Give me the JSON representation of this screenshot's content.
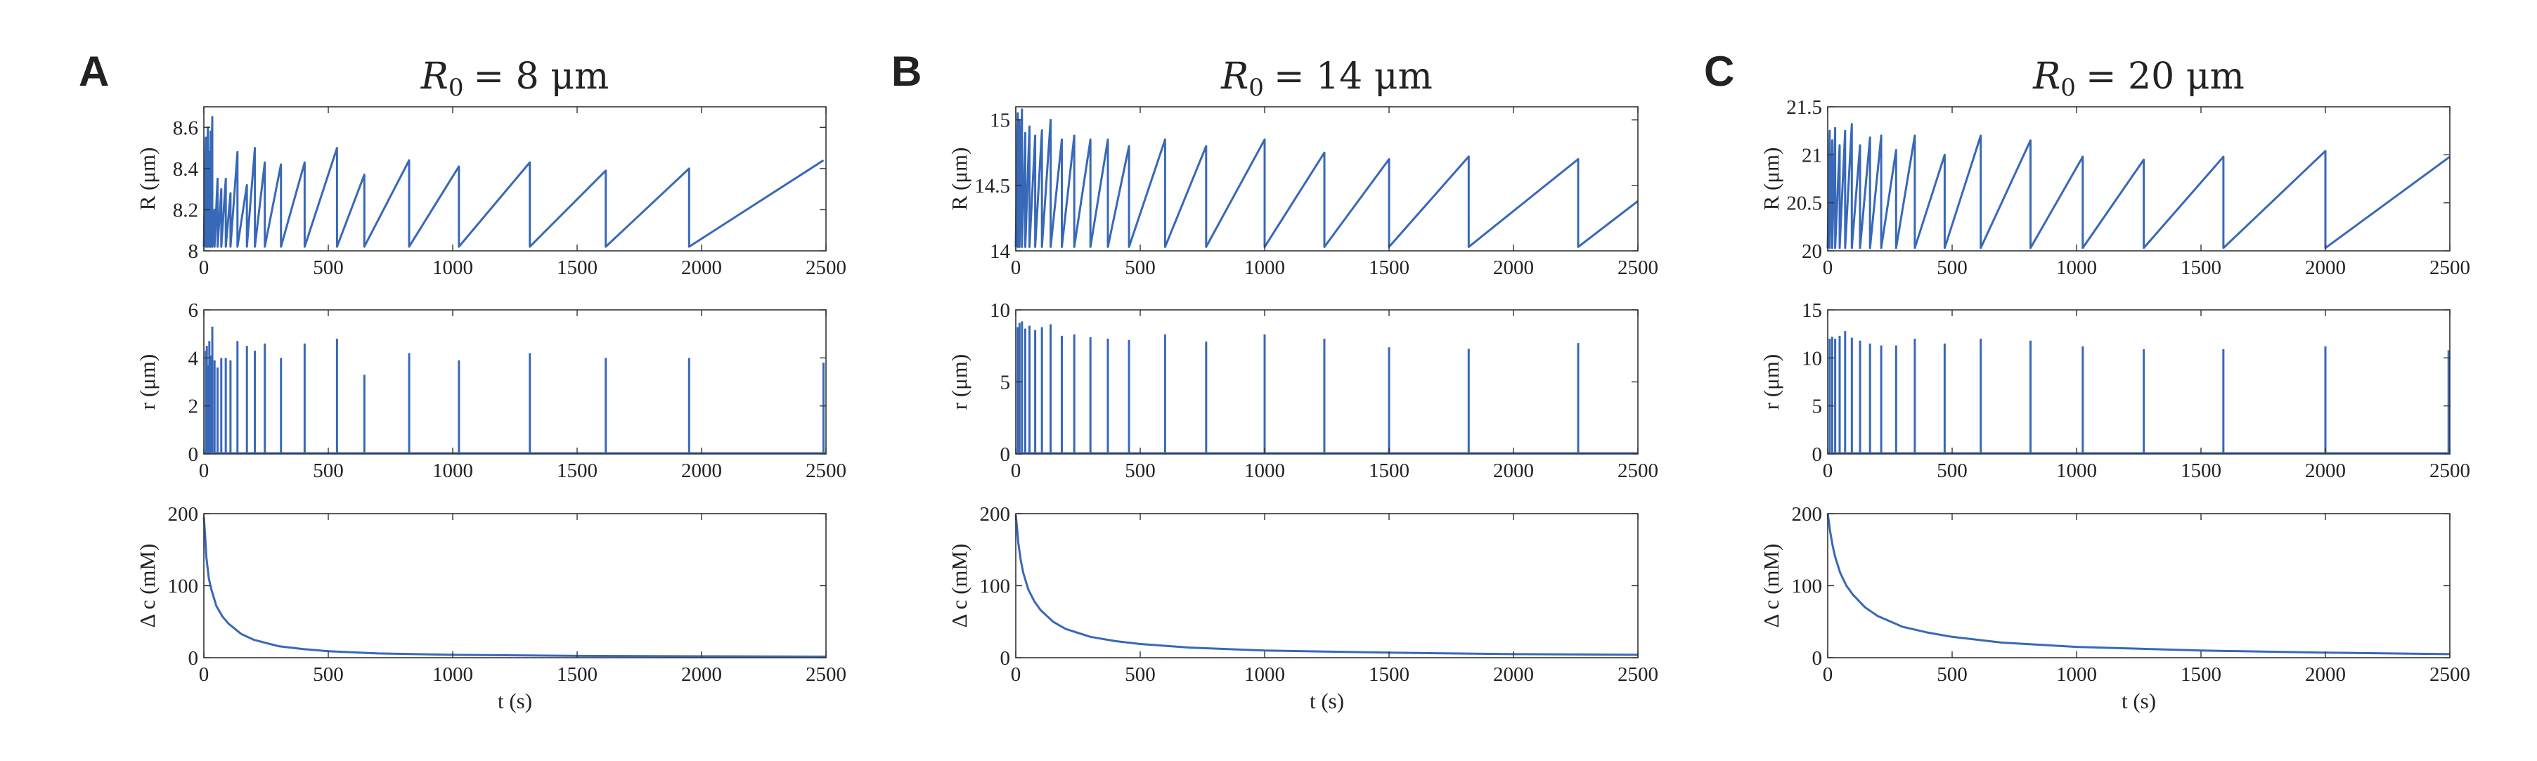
{
  "series_color": "#3868b8",
  "chart_data": [
    {
      "panel": "A",
      "title": {
        "lhs": "R",
        "sub": "0",
        "rhs": "= 8 μm"
      },
      "subplots": [
        {
          "type": "line",
          "ylabel": "R (μm)",
          "xlim": [
            0,
            2500
          ],
          "ylim": [
            8,
            8.7
          ],
          "xticks": [
            "0",
            "500",
            "1000",
            "1500",
            "2000",
            "2500"
          ],
          "yticks": [
            "8",
            "8.2",
            "8.4",
            "8.6"
          ],
          "series": [
            {
              "kind": "sawtooth",
              "color": "#3868b8",
              "base": 8.02,
              "peaks": [
                [
                  8,
                  8.55
                ],
                [
                  12,
                  8.48
                ],
                [
                  16,
                  8.6
                ],
                [
                  22,
                  8.48
                ],
                [
                  27,
                  8.58
                ],
                [
                  34,
                  8.65
                ],
                [
                  43,
                  8.2
                ],
                [
                  55,
                  8.35
                ],
                [
                  70,
                  8.3
                ],
                [
                  88,
                  8.35
                ],
                [
                  107,
                  8.28
                ],
                [
                  135,
                  8.48
                ],
                [
                  173,
                  8.32
                ],
                [
                  205,
                  8.5
                ],
                [
                  245,
                  8.43
                ],
                [
                  310,
                  8.42
                ],
                [
                  405,
                  8.43
                ],
                [
                  535,
                  8.5
                ],
                [
                  645,
                  8.37
                ],
                [
                  825,
                  8.44
                ],
                [
                  1025,
                  8.41
                ],
                [
                  1310,
                  8.43
                ],
                [
                  1615,
                  8.39
                ],
                [
                  1950,
                  8.4
                ],
                [
                  2490,
                  8.44
                ]
              ]
            }
          ]
        },
        {
          "type": "spikes",
          "ylabel": "r (μm)",
          "xlim": [
            0,
            2500
          ],
          "ylim": [
            0,
            6
          ],
          "xticks": [
            "0",
            "500",
            "1000",
            "1500",
            "2000",
            "2500"
          ],
          "yticks": [
            "0",
            "2",
            "4",
            "6"
          ],
          "series": [
            {
              "kind": "spikes",
              "color": "#3868b8",
              "spikes": [
                [
                  8,
                  4.3
                ],
                [
                  12,
                  4.5
                ],
                [
                  16,
                  3.7
                ],
                [
                  22,
                  4.7
                ],
                [
                  27,
                  4.1
                ],
                [
                  34,
                  5.3
                ],
                [
                  43,
                  3.9
                ],
                [
                  55,
                  3.6
                ],
                [
                  70,
                  4.0
                ],
                [
                  88,
                  4.0
                ],
                [
                  107,
                  3.9
                ],
                [
                  135,
                  4.7
                ],
                [
                  173,
                  4.5
                ],
                [
                  205,
                  4.3
                ],
                [
                  245,
                  4.6
                ],
                [
                  310,
                  4.0
                ],
                [
                  405,
                  4.6
                ],
                [
                  535,
                  4.8
                ],
                [
                  645,
                  3.3
                ],
                [
                  825,
                  4.2
                ],
                [
                  1025,
                  3.9
                ],
                [
                  1310,
                  4.2
                ],
                [
                  1615,
                  4.0
                ],
                [
                  1950,
                  4.0
                ],
                [
                  2490,
                  3.8
                ]
              ]
            }
          ]
        },
        {
          "type": "line",
          "ylabel": "Δ c (mM)",
          "xlabel": "t (s)",
          "xlim": [
            0,
            2500
          ],
          "ylim": [
            0,
            200
          ],
          "xticks": [
            "0",
            "500",
            "1000",
            "1500",
            "2000",
            "2500"
          ],
          "yticks": [
            "0",
            "100",
            "200"
          ],
          "series": [
            {
              "kind": "line",
              "color": "#3868b8",
              "x": [
                0,
                5,
                10,
                20,
                30,
                50,
                75,
                100,
                150,
                200,
                300,
                400,
                500,
                700,
                1000,
                1500,
                2000,
                2500
              ],
              "y": [
                195,
                170,
                140,
                110,
                95,
                72,
                57,
                47,
                33,
                25,
                16,
                12,
                9,
                6,
                4,
                2.5,
                2,
                1.5
              ]
            }
          ]
        }
      ]
    },
    {
      "panel": "B",
      "title": {
        "lhs": "R",
        "sub": "0",
        "rhs": "= 14 μm"
      },
      "subplots": [
        {
          "type": "line",
          "ylabel": "R (μm)",
          "xlim": [
            0,
            2500
          ],
          "ylim": [
            14,
            15.1
          ],
          "xticks": [
            "0",
            "500",
            "1000",
            "1500",
            "2000",
            "2500"
          ],
          "yticks": [
            "14",
            "14.5",
            "15"
          ],
          "series": [
            {
              "kind": "sawtooth",
              "color": "#3868b8",
              "base": 14.03,
              "peaks": [
                [
                  8,
                  15.05
                ],
                [
                  15,
                  15.0
                ],
                [
                  25,
                  15.08
                ],
                [
                  38,
                  14.9
                ],
                [
                  55,
                  14.95
                ],
                [
                  78,
                  14.88
                ],
                [
                  105,
                  14.92
                ],
                [
                  140,
                  15.0
                ],
                [
                  185,
                  14.85
                ],
                [
                  235,
                  14.88
                ],
                [
                  300,
                  14.85
                ],
                [
                  370,
                  14.85
                ],
                [
                  455,
                  14.8
                ],
                [
                  600,
                  14.85
                ],
                [
                  765,
                  14.8
                ],
                [
                  1000,
                  14.85
                ],
                [
                  1240,
                  14.75
                ],
                [
                  1500,
                  14.7
                ],
                [
                  1820,
                  14.72
                ],
                [
                  2260,
                  14.7
                ],
                [
                  2500,
                  14.38
                ]
              ]
            }
          ]
        },
        {
          "type": "spikes",
          "ylabel": "r (μm)",
          "xlim": [
            0,
            2500
          ],
          "ylim": [
            0,
            10
          ],
          "xticks": [
            "0",
            "500",
            "1000",
            "1500",
            "2000",
            "2500"
          ],
          "yticks": [
            "0",
            "5",
            "10"
          ],
          "series": [
            {
              "kind": "spikes",
              "color": "#3868b8",
              "spikes": [
                [
                  8,
                  8.8
                ],
                [
                  15,
                  9.1
                ],
                [
                  25,
                  9.2
                ],
                [
                  38,
                  8.7
                ],
                [
                  55,
                  8.9
                ],
                [
                  78,
                  8.6
                ],
                [
                  105,
                  8.8
                ],
                [
                  140,
                  9.0
                ],
                [
                  185,
                  8.2
                ],
                [
                  235,
                  8.3
                ],
                [
                  300,
                  8.1
                ],
                [
                  370,
                  8.0
                ],
                [
                  455,
                  7.9
                ],
                [
                  600,
                  8.3
                ],
                [
                  765,
                  7.8
                ],
                [
                  1000,
                  8.3
                ],
                [
                  1240,
                  8.0
                ],
                [
                  1500,
                  7.4
                ],
                [
                  1820,
                  7.3
                ],
                [
                  2260,
                  7.7
                ]
              ]
            }
          ]
        },
        {
          "type": "line",
          "ylabel": "Δ c (mM)",
          "xlabel": "t (s)",
          "xlim": [
            0,
            2500
          ],
          "ylim": [
            0,
            200
          ],
          "xticks": [
            "0",
            "500",
            "1000",
            "1500",
            "2000",
            "2500"
          ],
          "yticks": [
            "0",
            "100",
            "200"
          ],
          "series": [
            {
              "kind": "line",
              "color": "#3868b8",
              "x": [
                0,
                5,
                10,
                20,
                30,
                50,
                75,
                100,
                150,
                200,
                300,
                400,
                500,
                700,
                1000,
                1500,
                2000,
                2500
              ],
              "y": [
                198,
                180,
                160,
                135,
                118,
                95,
                78,
                66,
                50,
                40,
                29,
                23,
                19,
                14,
                10,
                7,
                5,
                4
              ]
            }
          ]
        }
      ]
    },
    {
      "panel": "C",
      "title": {
        "lhs": "R",
        "sub": "0",
        "rhs": "= 20 μm"
      },
      "subplots": [
        {
          "type": "line",
          "ylabel": "R (μm)",
          "xlim": [
            0,
            2500
          ],
          "ylim": [
            20,
            21.5
          ],
          "xticks": [
            "0",
            "500",
            "1000",
            "1500",
            "2000",
            "2500"
          ],
          "yticks": [
            "20",
            "20.5",
            "21",
            "21.5"
          ],
          "series": [
            {
              "kind": "sawtooth",
              "color": "#3868b8",
              "base": 20.03,
              "peaks": [
                [
                  8,
                  21.25
                ],
                [
                  18,
                  21.15
                ],
                [
                  30,
                  21.28
                ],
                [
                  48,
                  21.1
                ],
                [
                  70,
                  21.25
                ],
                [
                  97,
                  21.32
                ],
                [
                  130,
                  21.1
                ],
                [
                  170,
                  21.18
                ],
                [
                  215,
                  21.2
                ],
                [
                  275,
                  21.05
                ],
                [
                  350,
                  21.2
                ],
                [
                  470,
                  21.0
                ],
                [
                  615,
                  21.2
                ],
                [
                  815,
                  21.15
                ],
                [
                  1025,
                  20.98
                ],
                [
                  1270,
                  20.95
                ],
                [
                  1590,
                  20.98
                ],
                [
                  2000,
                  21.04
                ],
                [
                  2500,
                  20.98
                ]
              ]
            }
          ]
        },
        {
          "type": "spikes",
          "ylabel": "r (μm)",
          "xlim": [
            0,
            2500
          ],
          "ylim": [
            0,
            15
          ],
          "xticks": [
            "0",
            "500",
            "1000",
            "1500",
            "2000",
            "2500"
          ],
          "yticks": [
            "0",
            "5",
            "10",
            "15"
          ],
          "series": [
            {
              "kind": "spikes",
              "color": "#3868b8",
              "spikes": [
                [
                  8,
                  12.0
                ],
                [
                  18,
                  12.2
                ],
                [
                  30,
                  12.0
                ],
                [
                  48,
                  12.3
                ],
                [
                  70,
                  12.8
                ],
                [
                  97,
                  12.1
                ],
                [
                  130,
                  11.8
                ],
                [
                  170,
                  11.5
                ],
                [
                  215,
                  11.3
                ],
                [
                  275,
                  11.3
                ],
                [
                  350,
                  12.0
                ],
                [
                  470,
                  11.5
                ],
                [
                  615,
                  12.0
                ],
                [
                  815,
                  11.8
                ],
                [
                  1025,
                  11.2
                ],
                [
                  1270,
                  10.9
                ],
                [
                  1590,
                  10.9
                ],
                [
                  2000,
                  11.2
                ],
                [
                  2495,
                  10.8
                ]
              ]
            }
          ]
        },
        {
          "type": "line",
          "ylabel": "Δ c (mM)",
          "xlabel": "t (s)",
          "xlim": [
            0,
            2500
          ],
          "ylim": [
            0,
            200
          ],
          "xticks": [
            "0",
            "500",
            "1000",
            "1500",
            "2000",
            "2500"
          ],
          "yticks": [
            "0",
            "100",
            "200"
          ],
          "series": [
            {
              "kind": "line",
              "color": "#3868b8",
              "x": [
                0,
                5,
                10,
                20,
                30,
                50,
                75,
                100,
                150,
                200,
                300,
                400,
                500,
                700,
                1000,
                1500,
                2000,
                2500
              ],
              "y": [
                200,
                188,
                175,
                155,
                140,
                118,
                100,
                88,
                70,
                58,
                43,
                35,
                29,
                21,
                15,
                10,
                7,
                5
              ]
            }
          ]
        }
      ]
    }
  ]
}
